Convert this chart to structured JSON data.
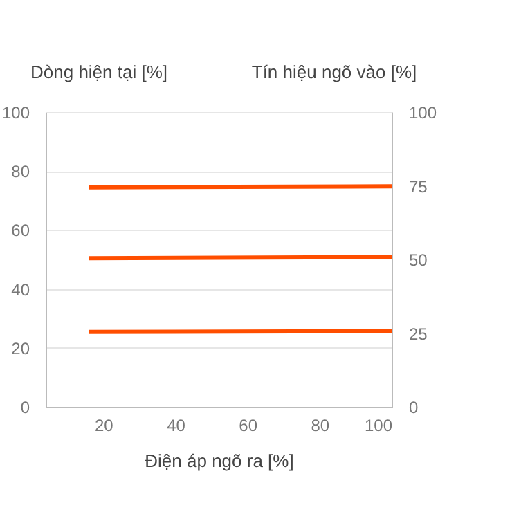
{
  "chart_data": {
    "type": "line",
    "xlabel": "Điện áp ngõ ra [%]",
    "ylabel": "Dòng hiện tại [%]",
    "y2label": "Tín hiệu ngõ vào [%]",
    "x": [
      16,
      100
    ],
    "series": [
      {
        "color": "#ff4e00",
        "values": [
          74.5,
          74.8
        ]
      },
      {
        "color": "#ff4e00",
        "values": [
          50.4,
          50.8
        ]
      },
      {
        "color": "#ff4e00",
        "values": [
          25.4,
          25.7
        ]
      }
    ],
    "xlim": [
      4,
      100
    ],
    "xticks": [
      20,
      40,
      60,
      80,
      100
    ],
    "ylim": [
      0,
      100
    ],
    "yticks": [
      0,
      20,
      40,
      60,
      80,
      100
    ],
    "y2lim": [
      0,
      100
    ],
    "y2ticks": [
      0,
      25,
      50,
      75,
      100
    ],
    "grid": "y",
    "legend": false,
    "marker": "none",
    "line_style": "solid"
  }
}
